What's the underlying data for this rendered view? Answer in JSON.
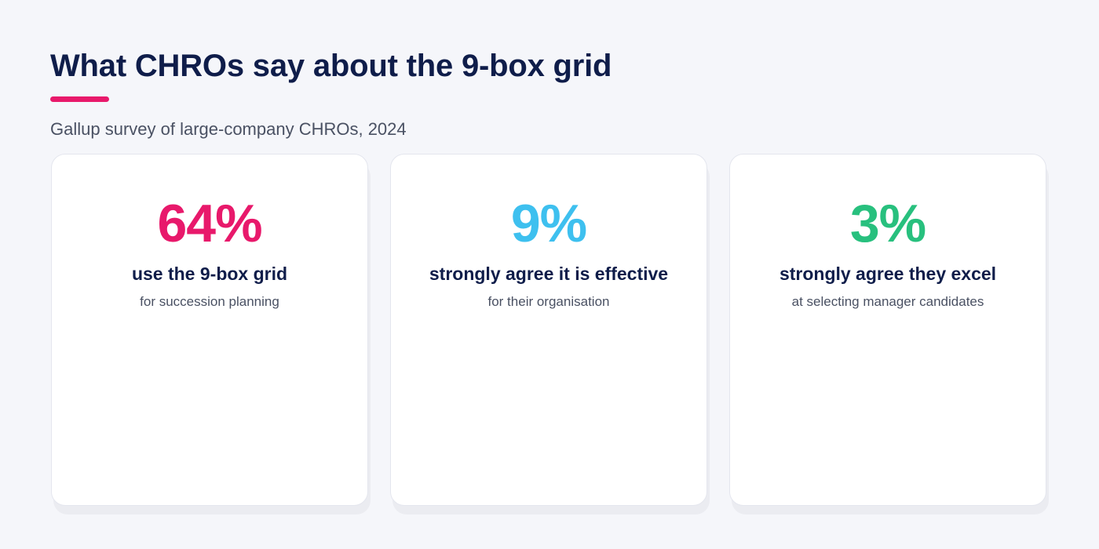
{
  "header": {
    "title": "What CHROs say about the 9-box grid",
    "subtitle": "Gallup survey of large-company CHROs, 2024",
    "accent_color": "#e8196b"
  },
  "stats": [
    {
      "value": "64%",
      "label": "use the 9-box grid",
      "sublabel": "for succession planning",
      "color": "#e8196b"
    },
    {
      "value": "9%",
      "label": "strongly agree it is effective",
      "sublabel": "for their organisation",
      "color": "#3ec0ef"
    },
    {
      "value": "3%",
      "label": "strongly agree they excel",
      "sublabel": "at selecting manager candidates",
      "color": "#28c07e"
    }
  ]
}
